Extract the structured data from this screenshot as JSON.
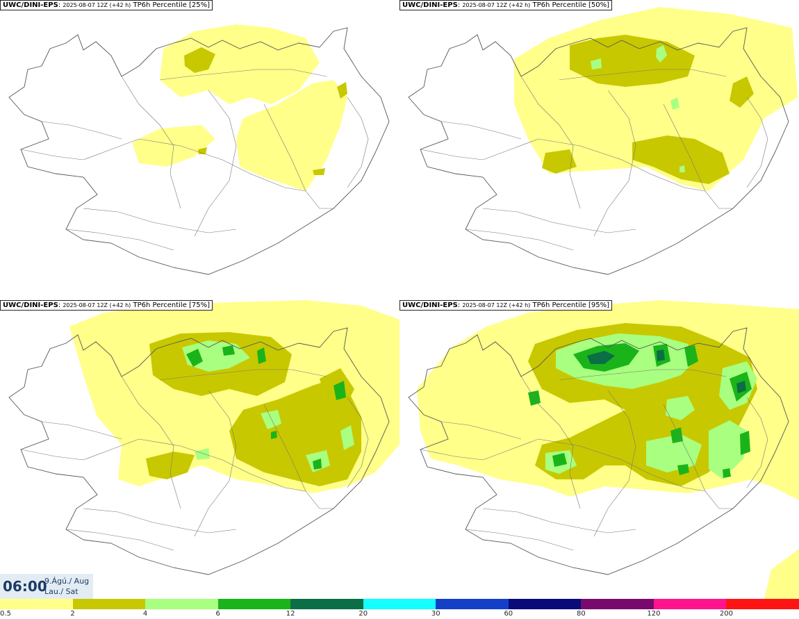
{
  "panels": [
    {
      "model": "UWC/DINI-EPS",
      "run": "2025-08-07 12Z (+42 h)",
      "field": "TP6h Percentile [25%]",
      "level": 0
    },
    {
      "model": "UWC/DINI-EPS",
      "run": "2025-08-07 12Z (+42 h)",
      "field": "TP6h Percentile [50%]",
      "level": 1
    },
    {
      "model": "UWC/DINI-EPS",
      "run": "2025-08-07 12Z (+42 h)",
      "field": "TP6h Percentile [75%]",
      "level": 2
    },
    {
      "model": "UWC/DINI-EPS",
      "run": "2025-08-07 12Z (+42 h)",
      "field": "TP6h Percentile [95%]",
      "level": 3
    }
  ],
  "valid_time": {
    "time": "06:00",
    "date_line1": "9.Ágú./ Aug",
    "date_line2": "Lau./ Sat"
  },
  "legend": {
    "colors": [
      "#ffff8a",
      "#c8c800",
      "#a8ff80",
      "#1ab41a",
      "#0a6e46",
      "#14ffff",
      "#1440c8",
      "#0a0a78",
      "#780a6e",
      "#ff148c",
      "#ff1414"
    ],
    "labels": [
      "0.5",
      "2",
      "4",
      "6",
      "12",
      "20",
      "30",
      "60",
      "80",
      "120",
      "200"
    ]
  }
}
